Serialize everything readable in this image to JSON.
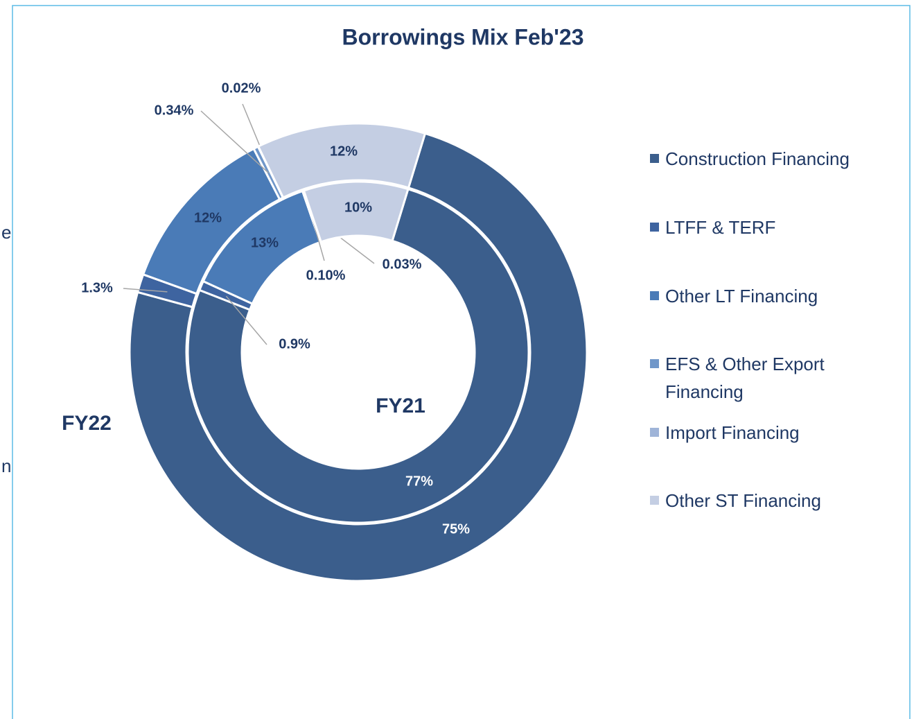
{
  "chart_data": {
    "type": "doughnut",
    "title": "Borrowings Mix Feb'23",
    "categories": [
      "Construction Financing",
      "LTFF & TERF",
      "Other LT Financing",
      "EFS & Other Export Financing",
      "Import Financing",
      "Other ST Financing"
    ],
    "colors": [
      "#3b5e8c",
      "#3e64a0",
      "#4a7bb7",
      "#7097c9",
      "#9fb4d8",
      "#c4cee3"
    ],
    "series": [
      {
        "name": "FY22",
        "values": [
          75,
          1.3,
          12,
          0.34,
          0.02,
          12
        ],
        "value_labels": [
          "75%",
          "1.3%",
          "12%",
          "0.34%",
          "0.02%",
          "12%"
        ]
      },
      {
        "name": "FY21",
        "values": [
          77,
          0.9,
          13,
          0.1,
          0.03,
          10
        ],
        "value_labels": [
          "77%",
          "0.9%",
          "13%",
          "0.10%",
          "0.03%",
          "10%"
        ]
      }
    ],
    "annotations": [
      "e",
      "n"
    ],
    "legend": "right"
  }
}
